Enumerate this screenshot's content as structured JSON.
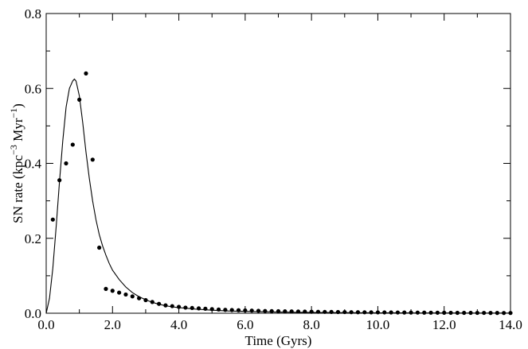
{
  "chart_data": {
    "type": "scatter",
    "title": "",
    "xlabel": "Time (Gyrs)",
    "ylabel": {
      "prefix": "SN rate (kpc",
      "exp1": "−3",
      "middle": " Myr",
      "exp2": "−1",
      "suffix": ")"
    },
    "xlim": [
      0,
      14
    ],
    "ylim": [
      0,
      0.8
    ],
    "x_ticks": [
      0,
      2,
      4,
      6,
      8,
      10,
      12,
      14
    ],
    "x_tick_labels": [
      "0.0",
      "2.0",
      "4.0",
      "6.0",
      "8.0",
      "10.0",
      "12.0",
      "14.0"
    ],
    "y_ticks": [
      0,
      0.2,
      0.4,
      0.6,
      0.8
    ],
    "y_tick_labels": [
      "0.0",
      "0.2",
      "0.4",
      "0.6",
      "0.8"
    ],
    "grid": false,
    "series": [
      {
        "kind": "points",
        "x": [
          0.2,
          0.4,
          0.6,
          0.8,
          1.0,
          1.2,
          1.4,
          1.6,
          1.8,
          2.0,
          2.2,
          2.4,
          2.6,
          2.8,
          3.0,
          3.2,
          3.4,
          3.6,
          3.8,
          4.0,
          4.2,
          4.4,
          4.6,
          4.8,
          5.0,
          5.2,
          5.4,
          5.6,
          5.8,
          6.0,
          6.2,
          6.4,
          6.6,
          6.8,
          7.0,
          7.2,
          7.4,
          7.6,
          7.8,
          8.0,
          8.2,
          8.4,
          8.6,
          8.8,
          9.0,
          9.2,
          9.4,
          9.6,
          9.8,
          10.0,
          10.2,
          10.4,
          10.6,
          10.8,
          11.0,
          11.2,
          11.4,
          11.6,
          11.8,
          12.0,
          12.2,
          12.4,
          12.6,
          12.8,
          13.0,
          13.2,
          13.4,
          13.6,
          13.8,
          14.0
        ],
        "y": [
          0.25,
          0.355,
          0.4,
          0.45,
          0.57,
          0.64,
          0.41,
          0.175,
          0.065,
          0.06,
          0.055,
          0.05,
          0.045,
          0.04,
          0.035,
          0.03,
          0.025,
          0.021,
          0.019,
          0.017,
          0.015,
          0.014,
          0.013,
          0.012,
          0.011,
          0.01,
          0.009,
          0.0085,
          0.008,
          0.0075,
          0.007,
          0.0065,
          0.006,
          0.0057,
          0.0054,
          0.0051,
          0.0048,
          0.0045,
          0.0042,
          0.004,
          0.0038,
          0.0036,
          0.0034,
          0.0032,
          0.003,
          0.0028,
          0.0026,
          0.0025,
          0.0024,
          0.0023,
          0.0022,
          0.0021,
          0.002,
          0.0019,
          0.0018,
          0.0017,
          0.0016,
          0.0015,
          0.0014,
          0.0013,
          0.0012,
          0.0011,
          0.001,
          0.001,
          0.0009,
          0.0009,
          0.0008,
          0.0008,
          0.0007,
          0.0007
        ]
      },
      {
        "kind": "line",
        "x": [
          0,
          0.1,
          0.2,
          0.3,
          0.4,
          0.5,
          0.6,
          0.7,
          0.8,
          0.85,
          0.9,
          1.0,
          1.1,
          1.2,
          1.3,
          1.4,
          1.5,
          1.6,
          1.7,
          1.8,
          1.9,
          2.0,
          2.2,
          2.4,
          2.6,
          2.8,
          3.0,
          3.2,
          3.4,
          3.6,
          3.8,
          4.0,
          4.5,
          5.0,
          5.5,
          6.0,
          7.0,
          8.0,
          9.0,
          10.0,
          11.0,
          12.0,
          13.0,
          14.0
        ],
        "y": [
          0,
          0.04,
          0.12,
          0.23,
          0.35,
          0.46,
          0.55,
          0.6,
          0.62,
          0.625,
          0.62,
          0.58,
          0.51,
          0.43,
          0.36,
          0.3,
          0.25,
          0.21,
          0.18,
          0.155,
          0.133,
          0.115,
          0.09,
          0.07,
          0.055,
          0.044,
          0.036,
          0.029,
          0.024,
          0.02,
          0.017,
          0.015,
          0.011,
          0.008,
          0.006,
          0.005,
          0.003,
          0.002,
          0.0015,
          0.001,
          0.0008,
          0.0006,
          0.0004,
          0.0003
        ]
      }
    ]
  }
}
